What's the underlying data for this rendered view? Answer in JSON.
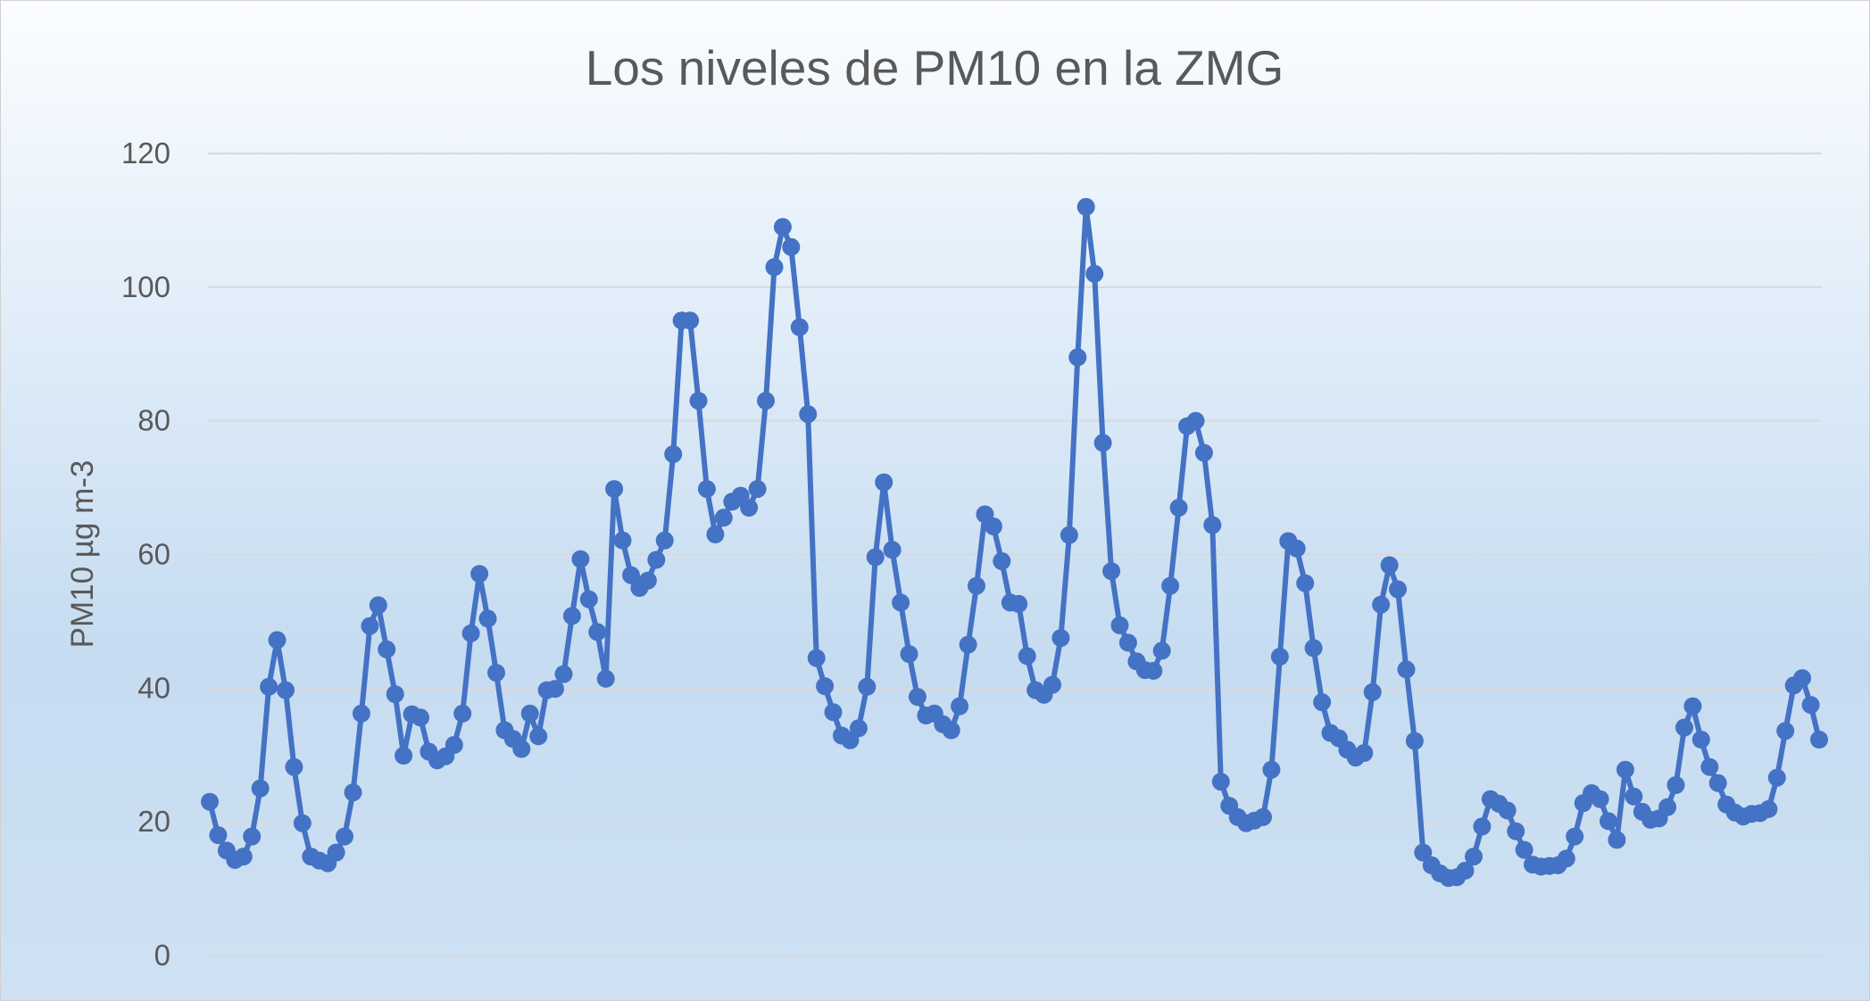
{
  "chart_data": {
    "type": "line",
    "title": "Los niveles de PM10 en la ZMG",
    "xlabel": "",
    "ylabel": "PM10 µg m-3",
    "ylim": [
      0,
      120
    ],
    "yticks": [
      0,
      20,
      40,
      60,
      80,
      100,
      120
    ],
    "grid": true,
    "legend": "none",
    "colors": {
      "series": "#4472c4",
      "grid": "#d9d9d9",
      "text": "#595959"
    },
    "series": [
      {
        "values": [
          23,
          18,
          15.7,
          14.3,
          14.8,
          17.8,
          25,
          40.2,
          47.2,
          39.7,
          28.2,
          19.8,
          14.8,
          14.2,
          13.8,
          15.4,
          17.8,
          24.4,
          36.2,
          49.3,
          52.4,
          45.8,
          39.1,
          29.9,
          36.1,
          35.6,
          30.5,
          29.2,
          29.8,
          31.5,
          36.2,
          48.2,
          57.1,
          50.4,
          42.3,
          33.7,
          32.4,
          30.9,
          36.2,
          32.8,
          39.7,
          39.9,
          42.1,
          50.8,
          59.3,
          53.3,
          48.4,
          41.4,
          69.8,
          62.1,
          56.9,
          55,
          56.1,
          59.2,
          62.1,
          75,
          95,
          95,
          83,
          69.8,
          63,
          65.5,
          67.9,
          68.8,
          67,
          69.8,
          83,
          103,
          109,
          106,
          94,
          81,
          44.5,
          40.3,
          36.4,
          32.9,
          32.2,
          34,
          40.2,
          59.6,
          70.8,
          60.7,
          52.8,
          45.1,
          38.7,
          35.9,
          36.2,
          34.6,
          33.7,
          37.3,
          46.5,
          55.3,
          66,
          64.2,
          59,
          52.8,
          52.6,
          44.8,
          39.7,
          39,
          40.5,
          47.5,
          62.9,
          89.5,
          112,
          102,
          76.7,
          57.5,
          49.4,
          46.8,
          44,
          42.7,
          42.6,
          45.6,
          55.3,
          67,
          79.2,
          80,
          75.2,
          64.4,
          26,
          22.4,
          20.7,
          19.8,
          20.2,
          20.7,
          27.8,
          44.7,
          62,
          60.9,
          55.7,
          46,
          37.9,
          33.3,
          32.5,
          30.8,
          29.6,
          30.3,
          39.4,
          52.5,
          58.4,
          54.8,
          42.8,
          32.1,
          15.4,
          13.5,
          12.3,
          11.6,
          11.7,
          12.7,
          14.8,
          19.3,
          23.4,
          22.7,
          21.7,
          18.6,
          15.8,
          13.6,
          13.3,
          13.4,
          13.5,
          14.5,
          17.8,
          22.8,
          24.3,
          23.4,
          20.1,
          17.3,
          27.8,
          23.8,
          21.5,
          20.3,
          20.5,
          22.2,
          25.5,
          34.1,
          37.3,
          32.3,
          28.2,
          25.8,
          22.6,
          21.4,
          20.8,
          21.2,
          21.3,
          21.9,
          26.6,
          33.6,
          40.4,
          41.5,
          37.5,
          32.3
        ]
      }
    ]
  }
}
